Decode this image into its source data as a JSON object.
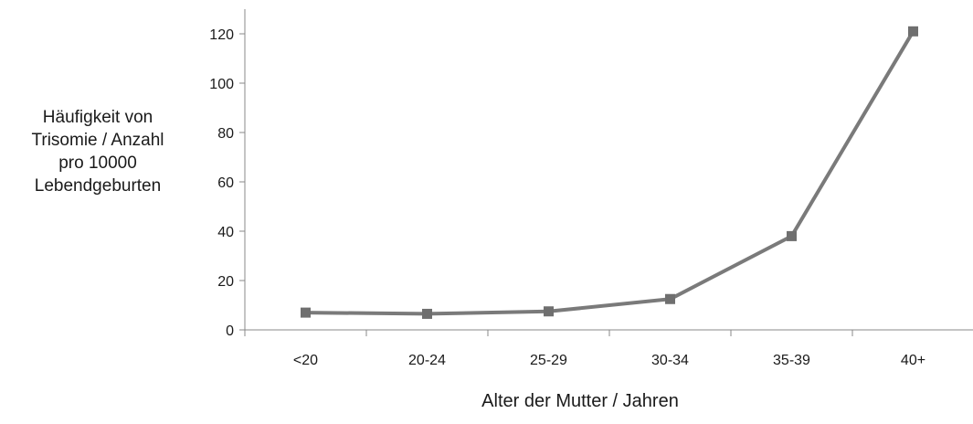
{
  "chart_data": {
    "type": "line",
    "title": "",
    "ylabel_lines": [
      "Häufigkeit von",
      "Trisomie / Anzahl",
      "pro 10000",
      "Lebendgeburten"
    ],
    "xlabel": "Alter der Mutter / Jahren",
    "categories": [
      "<20",
      "20-24",
      "25-29",
      "30-34",
      "35-39",
      "40+"
    ],
    "series": [
      {
        "values": [
          7,
          6.5,
          7.5,
          12.5,
          38,
          121
        ]
      }
    ],
    "ylim": [
      0,
      130
    ],
    "yticks": [
      0,
      20,
      40,
      60,
      80,
      100,
      120
    ],
    "grid": false,
    "legend": "none",
    "colors": {
      "line": "#7a7a7a",
      "marker": "#6f6f6f",
      "axis": "#888888"
    }
  }
}
